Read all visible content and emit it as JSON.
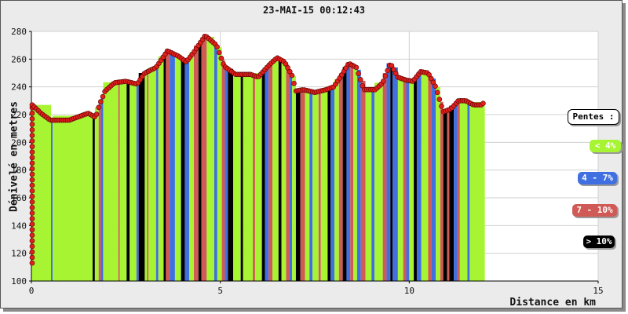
{
  "chart_data": {
    "type": "area",
    "title": "23-MAI-15 00:12:43",
    "xlabel": "Distance en km",
    "ylabel": "Dénivelé en metres",
    "xlim": [
      0,
      15
    ],
    "ylim": [
      100,
      280
    ],
    "x_ticks": [
      "0",
      "5",
      "10",
      "15"
    ],
    "y_ticks": [
      "100",
      "120",
      "140",
      "160",
      "180",
      "200",
      "220",
      "240",
      "260",
      "280"
    ],
    "grid": true,
    "legend_placement": "right",
    "legend": {
      "title": "Pentes :",
      "items": [
        {
          "label": "< 4%",
          "color": "#a7f432",
          "text_color": "#ffffff"
        },
        {
          "label": "4 - 7%",
          "color": "#3f6fe0",
          "text_color": "#ffffff"
        },
        {
          "label": "7 - 10%",
          "color": "#d05a55",
          "text_color": "#ffffff"
        },
        {
          "label": "> 10%",
          "color": "#000000",
          "text_color": "#ffffff"
        }
      ]
    },
    "start_climb": {
      "x": 0.02,
      "y_from": 113,
      "y_to": 227
    },
    "profile": {
      "x": [
        0.02,
        0.1,
        0.25,
        0.5,
        0.7,
        1.0,
        1.3,
        1.5,
        1.7,
        1.8,
        1.95,
        2.2,
        2.5,
        2.8,
        3.0,
        3.3,
        3.6,
        3.9,
        4.1,
        4.3,
        4.6,
        4.9,
        5.1,
        5.4,
        5.8,
        6.0,
        6.3,
        6.5,
        6.7,
        6.9,
        7.0,
        7.2,
        7.5,
        7.8,
        8.0,
        8.2,
        8.4,
        8.6,
        8.8,
        9.1,
        9.3,
        9.5,
        9.7,
        9.9,
        10.1,
        10.3,
        10.5,
        10.7,
        10.9,
        11.1,
        11.3,
        11.5,
        11.7,
        11.9,
        12.0
      ],
      "y": [
        227,
        225,
        221,
        216,
        216,
        216,
        219,
        221,
        218,
        227,
        237,
        243,
        244,
        242,
        250,
        254,
        266,
        262,
        258,
        265,
        277,
        270,
        255,
        249,
        249,
        247,
        256,
        261,
        258,
        248,
        237,
        238,
        236,
        238,
        240,
        248,
        257,
        254,
        238,
        238,
        243,
        257,
        247,
        245,
        244,
        251,
        250,
        240,
        222,
        224,
        230,
        230,
        227,
        227,
        229
      ]
    },
    "series_segments": [
      {
        "x_from": 0.0,
        "x_to": 0.52,
        "slope": "< 4%"
      },
      {
        "x_from": 0.52,
        "x_to": 0.56,
        "slope": "4 - 7%"
      },
      {
        "x_from": 0.56,
        "x_to": 1.62,
        "slope": "< 4%"
      },
      {
        "x_from": 1.62,
        "x_to": 1.68,
        "slope": "> 10%"
      },
      {
        "x_from": 1.68,
        "x_to": 1.78,
        "slope": "< 4%"
      },
      {
        "x_from": 1.78,
        "x_to": 1.84,
        "slope": "7 - 10%"
      },
      {
        "x_from": 1.84,
        "x_to": 1.9,
        "slope": "4 - 7%"
      },
      {
        "x_from": 1.9,
        "x_to": 2.3,
        "slope": "< 4%"
      },
      {
        "x_from": 2.3,
        "x_to": 2.34,
        "slope": "7 - 10%"
      },
      {
        "x_from": 2.34,
        "x_to": 2.52,
        "slope": "< 4%"
      },
      {
        "x_from": 2.52,
        "x_to": 2.6,
        "slope": "> 10%"
      },
      {
        "x_from": 2.6,
        "x_to": 2.78,
        "slope": "< 4%"
      },
      {
        "x_from": 2.78,
        "x_to": 2.84,
        "slope": "4 - 7%"
      },
      {
        "x_from": 2.84,
        "x_to": 3.0,
        "slope": "> 10%"
      },
      {
        "x_from": 3.0,
        "x_to": 3.06,
        "slope": "< 4%"
      },
      {
        "x_from": 3.06,
        "x_to": 3.1,
        "slope": "7 - 10%"
      },
      {
        "x_from": 3.1,
        "x_to": 3.3,
        "slope": "< 4%"
      },
      {
        "x_from": 3.3,
        "x_to": 3.36,
        "slope": "4 - 7%"
      },
      {
        "x_from": 3.36,
        "x_to": 3.5,
        "slope": "< 4%"
      },
      {
        "x_from": 3.5,
        "x_to": 3.56,
        "slope": "> 10%"
      },
      {
        "x_from": 3.56,
        "x_to": 3.66,
        "slope": "7 - 10%"
      },
      {
        "x_from": 3.66,
        "x_to": 3.8,
        "slope": "4 - 7%"
      },
      {
        "x_from": 3.8,
        "x_to": 3.96,
        "slope": "< 4%"
      },
      {
        "x_from": 3.96,
        "x_to": 4.06,
        "slope": "> 10%"
      },
      {
        "x_from": 4.06,
        "x_to": 4.18,
        "slope": "4 - 7%"
      },
      {
        "x_from": 4.18,
        "x_to": 4.3,
        "slope": "< 4%"
      },
      {
        "x_from": 4.3,
        "x_to": 4.42,
        "slope": "7 - 10%"
      },
      {
        "x_from": 4.42,
        "x_to": 4.5,
        "slope": "> 10%"
      },
      {
        "x_from": 4.5,
        "x_to": 4.64,
        "slope": "7 - 10%"
      },
      {
        "x_from": 4.64,
        "x_to": 4.84,
        "slope": "< 4%"
      },
      {
        "x_from": 4.84,
        "x_to": 4.92,
        "slope": "4 - 7%"
      },
      {
        "x_from": 4.92,
        "x_to": 5.04,
        "slope": "< 4%"
      },
      {
        "x_from": 5.04,
        "x_to": 5.12,
        "slope": "7 - 10%"
      },
      {
        "x_from": 5.12,
        "x_to": 5.2,
        "slope": "4 - 7%"
      },
      {
        "x_from": 5.2,
        "x_to": 5.34,
        "slope": "> 10%"
      },
      {
        "x_from": 5.34,
        "x_to": 5.54,
        "slope": "< 4%"
      },
      {
        "x_from": 5.54,
        "x_to": 5.6,
        "slope": "> 10%"
      },
      {
        "x_from": 5.6,
        "x_to": 5.86,
        "slope": "< 4%"
      },
      {
        "x_from": 5.86,
        "x_to": 5.92,
        "slope": "7 - 10%"
      },
      {
        "x_from": 5.92,
        "x_to": 6.1,
        "slope": "< 4%"
      },
      {
        "x_from": 6.1,
        "x_to": 6.18,
        "slope": "> 10%"
      },
      {
        "x_from": 6.18,
        "x_to": 6.28,
        "slope": "4 - 7%"
      },
      {
        "x_from": 6.28,
        "x_to": 6.38,
        "slope": "7 - 10%"
      },
      {
        "x_from": 6.38,
        "x_to": 6.54,
        "slope": "< 4%"
      },
      {
        "x_from": 6.54,
        "x_to": 6.62,
        "slope": "> 10%"
      },
      {
        "x_from": 6.62,
        "x_to": 6.74,
        "slope": "< 4%"
      },
      {
        "x_from": 6.74,
        "x_to": 6.82,
        "slope": "7 - 10%"
      },
      {
        "x_from": 6.82,
        "x_to": 6.9,
        "slope": "4 - 7%"
      },
      {
        "x_from": 6.9,
        "x_to": 7.0,
        "slope": "< 4%"
      },
      {
        "x_from": 7.0,
        "x_to": 7.12,
        "slope": "> 10%"
      },
      {
        "x_from": 7.12,
        "x_to": 7.24,
        "slope": "7 - 10%"
      },
      {
        "x_from": 7.24,
        "x_to": 7.36,
        "slope": "< 4%"
      },
      {
        "x_from": 7.36,
        "x_to": 7.44,
        "slope": "4 - 7%"
      },
      {
        "x_from": 7.44,
        "x_to": 7.6,
        "slope": "< 4%"
      },
      {
        "x_from": 7.6,
        "x_to": 7.66,
        "slope": "7 - 10%"
      },
      {
        "x_from": 7.66,
        "x_to": 7.84,
        "slope": "< 4%"
      },
      {
        "x_from": 7.84,
        "x_to": 7.92,
        "slope": "> 10%"
      },
      {
        "x_from": 7.92,
        "x_to": 8.02,
        "slope": "4 - 7%"
      },
      {
        "x_from": 8.02,
        "x_to": 8.14,
        "slope": "< 4%"
      },
      {
        "x_from": 8.14,
        "x_to": 8.24,
        "slope": "7 - 10%"
      },
      {
        "x_from": 8.24,
        "x_to": 8.34,
        "slope": "> 10%"
      },
      {
        "x_from": 8.34,
        "x_to": 8.44,
        "slope": "4 - 7%"
      },
      {
        "x_from": 8.44,
        "x_to": 8.52,
        "slope": "7 - 10%"
      },
      {
        "x_from": 8.52,
        "x_to": 8.62,
        "slope": "< 4%"
      },
      {
        "x_from": 8.62,
        "x_to": 8.72,
        "slope": "4 - 7%"
      },
      {
        "x_from": 8.72,
        "x_to": 8.84,
        "slope": "7 - 10%"
      },
      {
        "x_from": 8.84,
        "x_to": 9.0,
        "slope": "< 4%"
      },
      {
        "x_from": 9.0,
        "x_to": 9.08,
        "slope": "4 - 7%"
      },
      {
        "x_from": 9.08,
        "x_to": 9.3,
        "slope": "< 4%"
      },
      {
        "x_from": 9.3,
        "x_to": 9.4,
        "slope": "7 - 10%"
      },
      {
        "x_from": 9.4,
        "x_to": 9.5,
        "slope": "4 - 7%"
      },
      {
        "x_from": 9.5,
        "x_to": 9.56,
        "slope": "> 10%"
      },
      {
        "x_from": 9.56,
        "x_to": 9.7,
        "slope": "4 - 7%"
      },
      {
        "x_from": 9.7,
        "x_to": 9.84,
        "slope": "< 4%"
      },
      {
        "x_from": 9.84,
        "x_to": 9.92,
        "slope": "7 - 10%"
      },
      {
        "x_from": 9.92,
        "x_to": 10.0,
        "slope": "4 - 7%"
      },
      {
        "x_from": 10.0,
        "x_to": 10.12,
        "slope": "< 4%"
      },
      {
        "x_from": 10.12,
        "x_to": 10.2,
        "slope": "> 10%"
      },
      {
        "x_from": 10.2,
        "x_to": 10.32,
        "slope": "4 - 7%"
      },
      {
        "x_from": 10.32,
        "x_to": 10.5,
        "slope": "< 4%"
      },
      {
        "x_from": 10.5,
        "x_to": 10.58,
        "slope": "7 - 10%"
      },
      {
        "x_from": 10.58,
        "x_to": 10.7,
        "slope": "4 - 7%"
      },
      {
        "x_from": 10.7,
        "x_to": 10.82,
        "slope": "< 4%"
      },
      {
        "x_from": 10.82,
        "x_to": 10.9,
        "slope": "7 - 10%"
      },
      {
        "x_from": 10.9,
        "x_to": 11.0,
        "slope": "> 10%"
      },
      {
        "x_from": 11.0,
        "x_to": 11.06,
        "slope": "7 - 10%"
      },
      {
        "x_from": 11.06,
        "x_to": 11.18,
        "slope": "> 10%"
      },
      {
        "x_from": 11.18,
        "x_to": 11.26,
        "slope": "4 - 7%"
      },
      {
        "x_from": 11.26,
        "x_to": 11.34,
        "slope": "7 - 10%"
      },
      {
        "x_from": 11.34,
        "x_to": 11.54,
        "slope": "< 4%"
      },
      {
        "x_from": 11.54,
        "x_to": 11.6,
        "slope": "4 - 7%"
      },
      {
        "x_from": 11.6,
        "x_to": 12.0,
        "slope": "< 4%"
      }
    ]
  }
}
